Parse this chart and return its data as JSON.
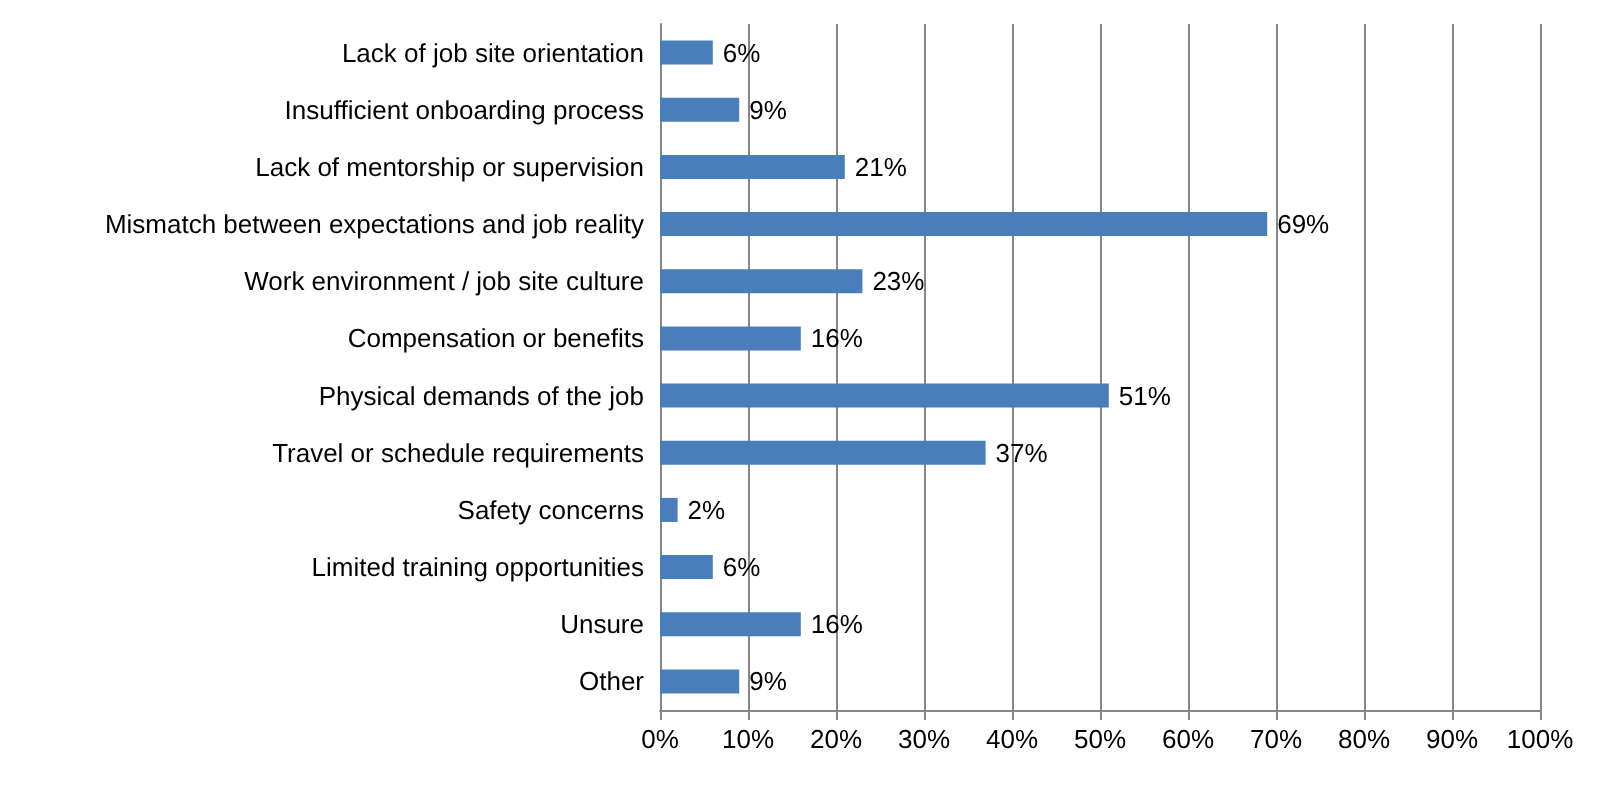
{
  "chart_data": {
    "type": "bar",
    "orientation": "horizontal",
    "categories": [
      "Lack of job site orientation",
      "Insufficient onboarding process",
      "Lack of mentorship or supervision",
      "Mismatch between expectations and job reality",
      "Work environment / job site culture",
      "Compensation or benefits",
      "Physical demands of the job",
      "Travel or schedule requirements",
      "Safety concerns",
      "Limited training opportunities",
      "Unsure",
      "Other"
    ],
    "values": [
      6,
      9,
      21,
      69,
      23,
      16,
      51,
      37,
      2,
      6,
      16,
      9
    ],
    "value_labels": [
      "6%",
      "9%",
      "21%",
      "69%",
      "23%",
      "16%",
      "51%",
      "37%",
      "2%",
      "6%",
      "16%",
      "9%"
    ],
    "color": "#4a7ebb",
    "xlim": [
      0,
      100
    ],
    "xticks": [
      {
        "value": 0,
        "label": "0%"
      },
      {
        "value": 10,
        "label": "10%"
      },
      {
        "value": 20,
        "label": "20%"
      },
      {
        "value": 30,
        "label": "30%"
      },
      {
        "value": 40,
        "label": "40%"
      },
      {
        "value": 50,
        "label": "50%"
      },
      {
        "value": 60,
        "label": "60%"
      },
      {
        "value": 70,
        "label": "70%"
      },
      {
        "value": 80,
        "label": "80%"
      },
      {
        "value": 90,
        "label": "90%"
      },
      {
        "value": 100,
        "label": "100%"
      }
    ],
    "grid": "x"
  }
}
